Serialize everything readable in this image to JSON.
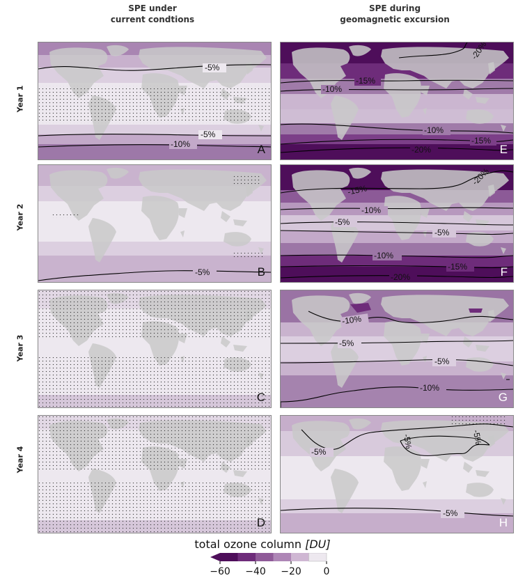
{
  "columns": {
    "left": {
      "line1": "SPE under",
      "line2": "current condtions"
    },
    "right": {
      "line1": "SPE during",
      "line2": "geomagnetic excursion"
    }
  },
  "rows": [
    "Year 1",
    "Year 2",
    "Year 3",
    "Year 4"
  ],
  "panels": [
    {
      "letter": "A",
      "contours": [
        "-5%",
        "-5%",
        "-10%"
      ]
    },
    {
      "letter": "B",
      "contours": [
        "-5%"
      ]
    },
    {
      "letter": "C",
      "contours": []
    },
    {
      "letter": "D",
      "contours": []
    },
    {
      "letter": "E",
      "contours": [
        "-20%",
        "-15%",
        "-10%",
        "-10%",
        "-15%",
        "-20%"
      ]
    },
    {
      "letter": "F",
      "contours": [
        "-20%",
        "-15%",
        "-10%",
        "-5%",
        "-5%",
        "-10%",
        "-15%",
        "-20%"
      ]
    },
    {
      "letter": "G",
      "contours": [
        "-10%",
        "-5%",
        "-5%",
        "-10%"
      ]
    },
    {
      "letter": "H",
      "contours": [
        "-5%",
        "-5%",
        "-5%",
        "-5%"
      ]
    }
  ],
  "colorbar": {
    "title": "total ozone column",
    "unit": "[DU]",
    "ticks": [
      "−60",
      "−40",
      "−20",
      "0"
    ],
    "colors": [
      "#4e0e5a",
      "#6e2c7a",
      "#8f5a98",
      "#ae86b6",
      "#cfb7d3",
      "#ede8ef"
    ]
  }
}
